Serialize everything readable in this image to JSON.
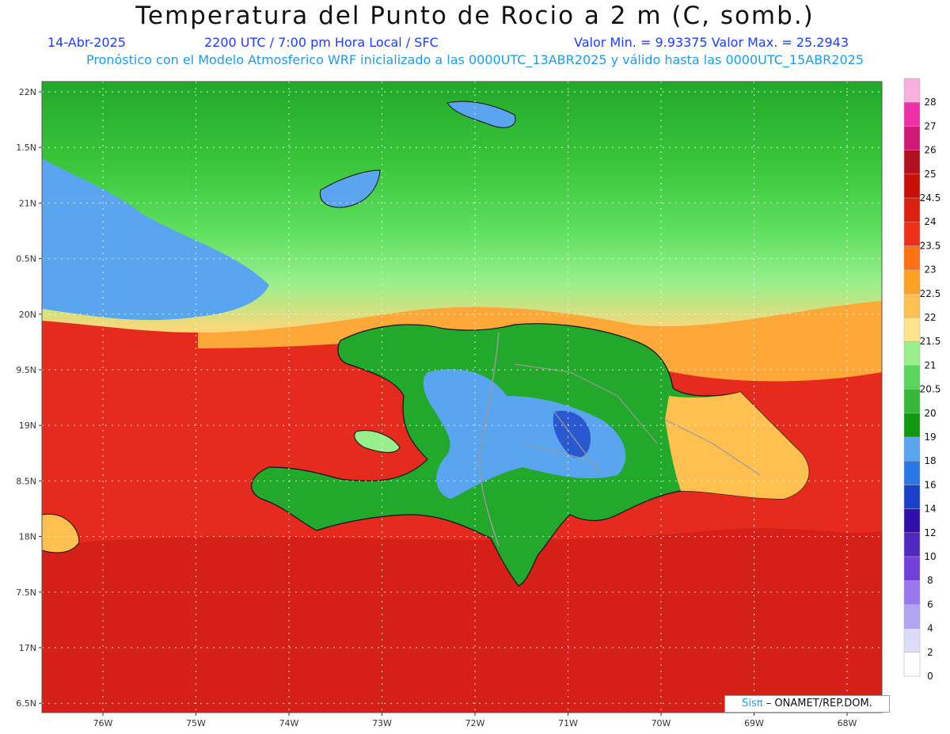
{
  "header": {
    "title": "Temperatura del Punto de Rocio a 2 m (C, somb.)",
    "date": "14-Abr-2025",
    "time": "2200 UTC / 7:00 pm Hora Local / SFC",
    "minmax": "Valor Min. = 9.93375  Valor Max. = 25.2943",
    "model_line": "Pronóstico con el Modelo Atmosferico WRF inicializado a las 0000UTC_13ABR2025 y válido hasta las  0000UTC_15ABR2025"
  },
  "credit": {
    "logo": "Sisπ",
    "text": "– ONAMET/REP.DOM."
  },
  "map": {
    "lat_labels": [
      "22N",
      "1.5N",
      "21N",
      "0.5N",
      "20N",
      "9.5N",
      "19N",
      "8.5N",
      "18N",
      "7.5N",
      "17N",
      "6.5N"
    ],
    "lon_labels": [
      "76W",
      "75W",
      "74W",
      "73W",
      "72W",
      "71W",
      "70W",
      "69W",
      "68W"
    ],
    "colors": {
      "ocean_warm": "#e52b1d",
      "ocean_hot": "#cc1a10",
      "land_green": "#22a82a",
      "land_blue": "#5aa5f0",
      "north_green": "#3cc83c",
      "north_lightgreen": "#60e060",
      "north_pale": "#98ef8c",
      "yellow": "#ffd67a",
      "orange": "#ffa83a",
      "border_gray": "#9a9a9a"
    }
  },
  "colorbar": {
    "ticks": [
      "28",
      "27",
      "26",
      "25",
      "24.5",
      "24",
      "23.5",
      "23",
      "22.5",
      "22",
      "21.5",
      "21",
      "20.5",
      "20",
      "19",
      "18",
      "16",
      "14",
      "12",
      "10",
      "8",
      "6",
      "4",
      "2",
      "0"
    ],
    "colors": [
      "#ffffff",
      "#dcdcf8",
      "#b4a4f4",
      "#9878ec",
      "#7040d8",
      "#5028c0",
      "#3010a8",
      "#1840c8",
      "#2a78e6",
      "#5aa5f0",
      "#109810",
      "#38b838",
      "#5ad45a",
      "#98ef8c",
      "#ffe48a",
      "#ffc050",
      "#ffa020",
      "#ff7010",
      "#ef3018",
      "#dc2010",
      "#c81008",
      "#b01020",
      "#d01878",
      "#f030a8",
      "#f8b0dc"
    ]
  }
}
